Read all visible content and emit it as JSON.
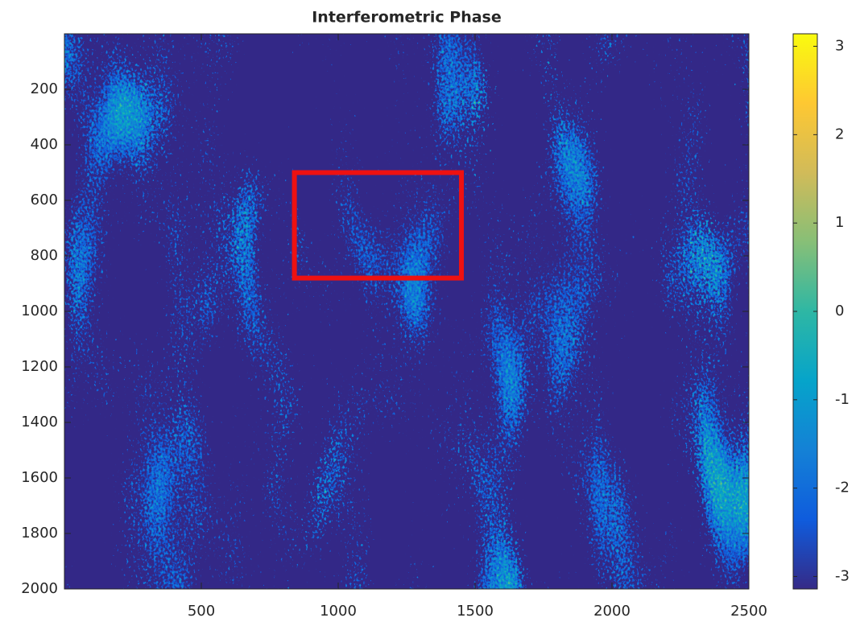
{
  "chart_data": {
    "type": "image",
    "title": "Interferometric Phase",
    "xlim": [
      0,
      2500
    ],
    "xticks": [
      500,
      1000,
      1500,
      2000,
      2500
    ],
    "ylim": [
      0,
      2000
    ],
    "yticks": [
      200,
      400,
      600,
      800,
      1000,
      1200,
      1400,
      1600,
      1800,
      2000
    ],
    "y_reversed": true,
    "region": {
      "x": [
        840,
        1450
      ],
      "y": [
        500,
        880
      ],
      "color": "#ee1111"
    },
    "colorbar": {
      "clim": [
        -3.1416,
        3.1416
      ],
      "ticks": [
        -3,
        -2,
        -1,
        0,
        1,
        2,
        3
      ],
      "colormap": [
        "#352a87",
        "#0f5cdd",
        "#1481d6",
        "#06a4ca",
        "#2eb7a4",
        "#87bf77",
        "#d1bb59",
        "#fec832",
        "#f9fb0e"
      ]
    }
  }
}
